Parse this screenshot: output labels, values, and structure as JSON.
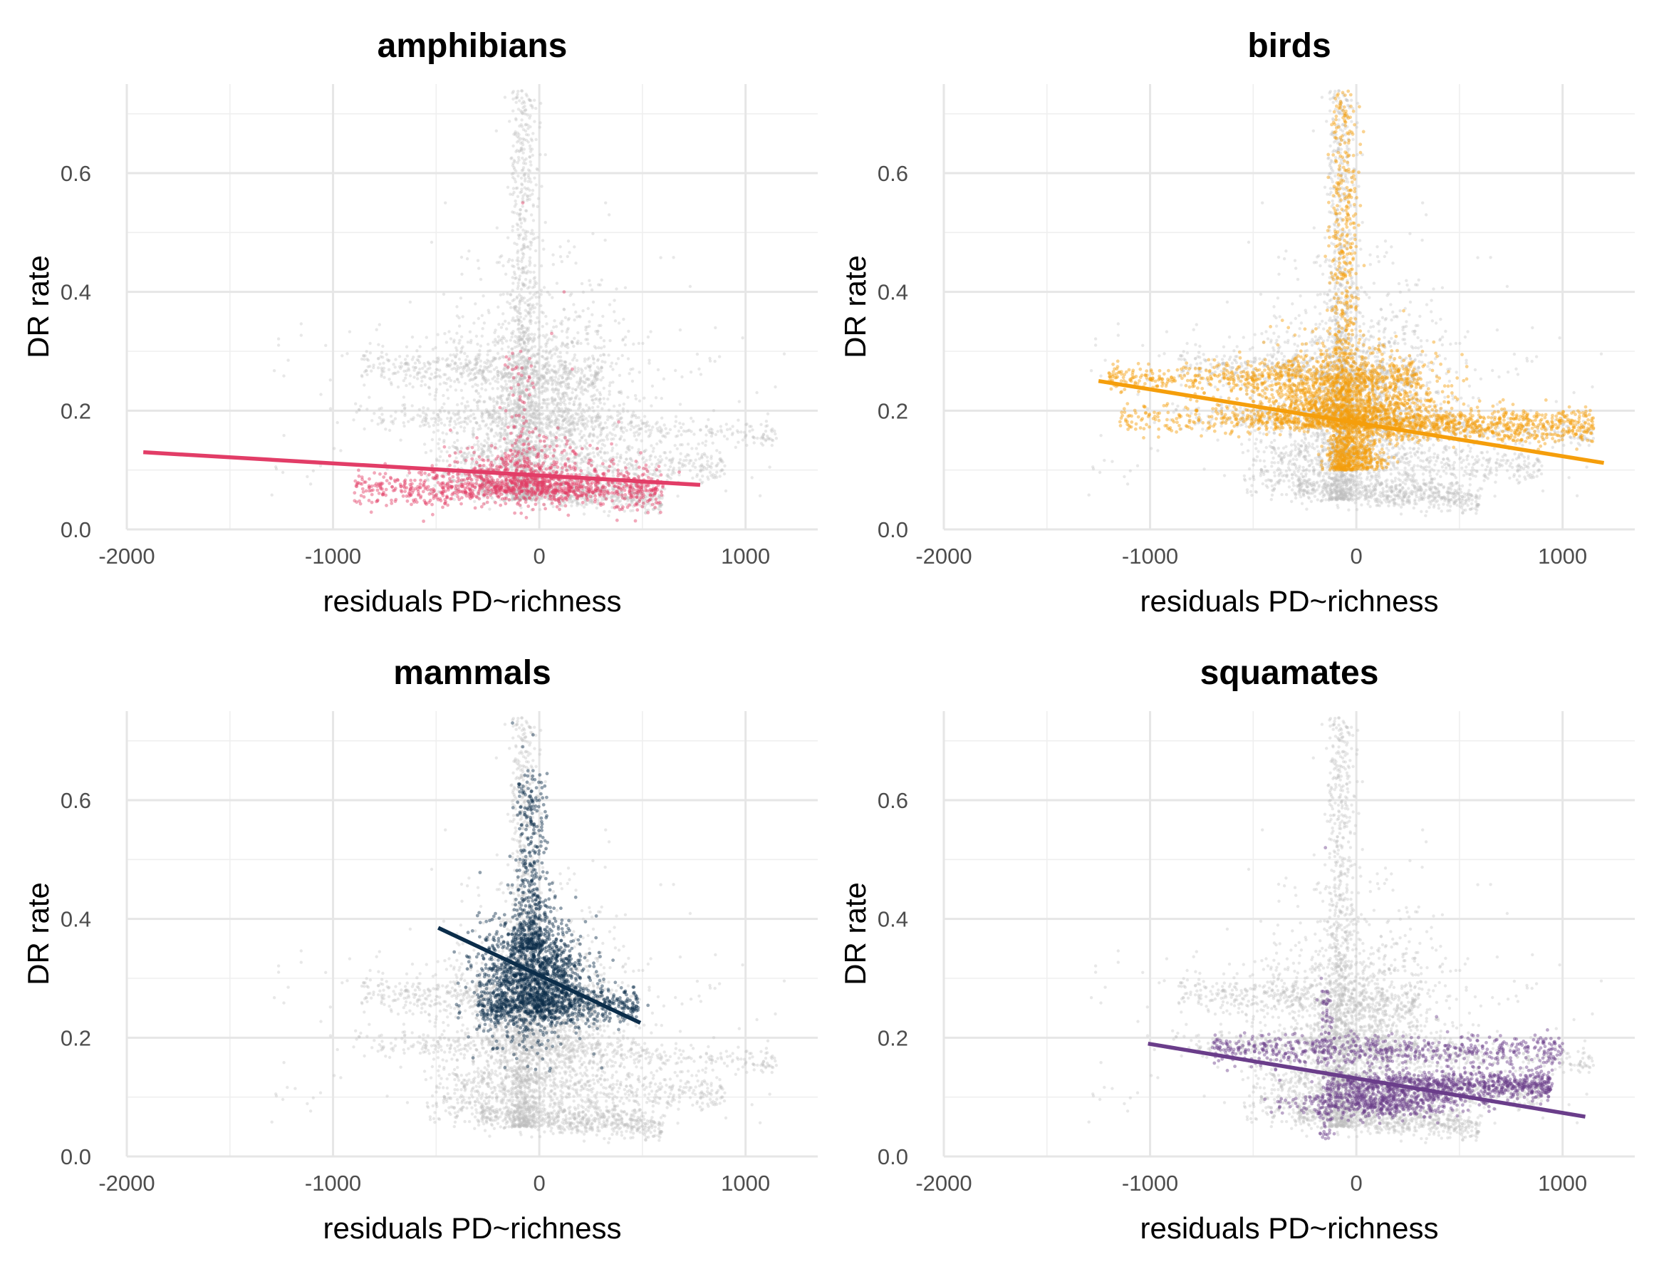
{
  "chart_data": [
    {
      "type": "scatter",
      "title": "amphibians",
      "xlabel": "residuals PD~richness",
      "ylabel": "DR rate",
      "xlim": [
        -2000,
        1350
      ],
      "ylim": [
        0,
        0.75
      ],
      "x_ticks": [
        -2000,
        -1000,
        0,
        1000
      ],
      "y_ticks": [
        0.0,
        0.2,
        0.4,
        0.6
      ],
      "grid": true,
      "color": "#e23d67",
      "background_color": "#bdbdbd",
      "fit_line": {
        "x": [
          -1920,
          780
        ],
        "y": [
          0.13,
          0.075
        ]
      },
      "highlight_cloud": {
        "x_range": [
          -900,
          600
        ],
        "y_center": 0.08,
        "y_spread": 0.04
      }
    },
    {
      "type": "scatter",
      "title": "birds",
      "xlabel": "residuals PD~richness",
      "ylabel": "DR rate",
      "xlim": [
        -2000,
        1350
      ],
      "ylim": [
        0,
        0.75
      ],
      "x_ticks": [
        -2000,
        -1000,
        0,
        1000
      ],
      "y_ticks": [
        0.0,
        0.2,
        0.4,
        0.6
      ],
      "grid": true,
      "color": "#f59e0b",
      "background_color": "#bdbdbd",
      "fit_line": {
        "x": [
          -1250,
          1200
        ],
        "y": [
          0.25,
          0.112
        ]
      },
      "highlight_cloud": {
        "x_range": [
          -1200,
          1150
        ],
        "y_center": 0.2,
        "y_spread": 0.06
      }
    },
    {
      "type": "scatter",
      "title": "mammals",
      "xlabel": "residuals PD~richness",
      "ylabel": "DR rate",
      "xlim": [
        -2000,
        1350
      ],
      "ylim": [
        0,
        0.75
      ],
      "x_ticks": [
        -2000,
        -1000,
        0,
        1000
      ],
      "y_ticks": [
        0.0,
        0.2,
        0.4,
        0.6
      ],
      "grid": true,
      "color": "#0b2d4a",
      "background_color": "#bdbdbd",
      "fit_line": {
        "x": [
          -490,
          490
        ],
        "y": [
          0.385,
          0.225
        ]
      },
      "highlight_cloud": {
        "x_range": [
          -350,
          480
        ],
        "y_center": 0.3,
        "y_spread": 0.05
      }
    },
    {
      "type": "scatter",
      "title": "squamates",
      "xlabel": "residuals PD~richness",
      "ylabel": "DR rate",
      "xlim": [
        -2000,
        1350
      ],
      "ylim": [
        0,
        0.75
      ],
      "x_ticks": [
        -2000,
        -1000,
        0,
        1000
      ],
      "y_ticks": [
        0.0,
        0.2,
        0.4,
        0.6
      ],
      "grid": true,
      "color": "#6a3d8a",
      "background_color": "#bdbdbd",
      "fit_line": {
        "x": [
          -1010,
          1110
        ],
        "y": [
          0.19,
          0.067
        ]
      },
      "highlight_cloud": {
        "x_range": [
          -900,
          1000
        ],
        "y_center": 0.12,
        "y_spread": 0.035
      }
    }
  ]
}
